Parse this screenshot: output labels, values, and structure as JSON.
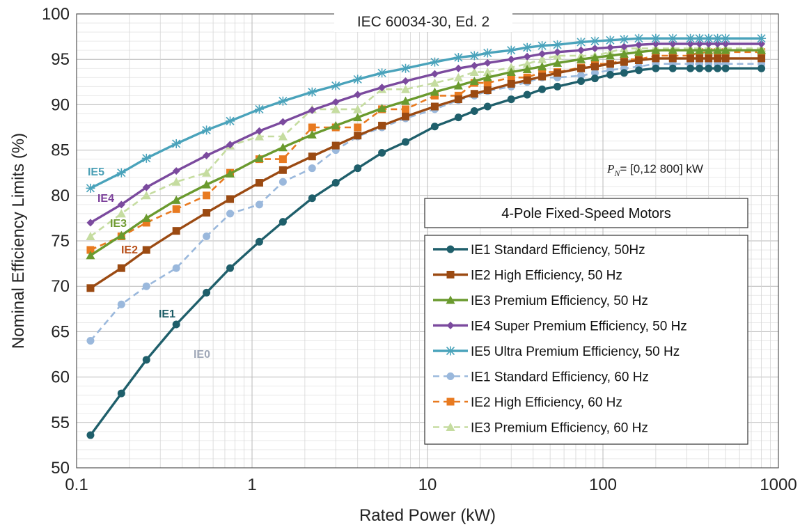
{
  "chart_data": {
    "type": "line",
    "title": "IEC 60034-30, Ed. 2",
    "xlabel": "Rated Power (kW)",
    "ylabel": "Nominal Efficiency Limits (%)",
    "xscale": "log",
    "xlim": [
      0.1,
      1000
    ],
    "ylim": [
      50,
      100
    ],
    "x_ticks": [
      "0.1",
      "1",
      "10",
      "100",
      "1000"
    ],
    "y_ticks": [
      "50",
      "55",
      "60",
      "65",
      "70",
      "75",
      "80",
      "85",
      "90",
      "95",
      "100"
    ],
    "grid": true,
    "legend_title": "4-Pole Fixed-Speed Motors",
    "legend_position": "right",
    "range_note": {
      "symbol": "P",
      "subscript": "N",
      "text": "= [0,12  800] kW"
    },
    "annotations": [
      {
        "text": "IE5",
        "color": "#4a9fb5"
      },
      {
        "text": "IE4",
        "color": "#7b3f9a"
      },
      {
        "text": "IE3",
        "color": "#6f9a30"
      },
      {
        "text": "IE2",
        "color": "#b8501a"
      },
      {
        "text": "IE1",
        "color": "#1c5c66"
      },
      {
        "text": "IE0",
        "color": "#a0a8b8"
      }
    ],
    "x": [
      0.12,
      0.18,
      0.25,
      0.37,
      0.55,
      0.75,
      1.1,
      1.5,
      2.2,
      3,
      4,
      5.5,
      7.5,
      11,
      15,
      18.5,
      22,
      30,
      37,
      45,
      55,
      75,
      90,
      110,
      132,
      160,
      200,
      250,
      315,
      355,
      400,
      450,
      500,
      800
    ],
    "series": [
      {
        "name": "IE1 Standard Efficiency, 50Hz",
        "color": "#1f5f6b",
        "marker": "circle",
        "dash": false,
        "values": [
          53.6,
          58.2,
          61.9,
          65.8,
          69.3,
          72.0,
          74.9,
          77.1,
          79.7,
          81.4,
          83.0,
          84.7,
          85.9,
          87.6,
          88.6,
          89.3,
          89.8,
          90.6,
          91.1,
          91.7,
          92.0,
          92.6,
          92.9,
          93.3,
          93.5,
          93.8,
          94.0,
          94.0,
          94.0,
          94.0,
          94.0,
          94.0,
          94.0,
          94.0
        ]
      },
      {
        "name": "IE2 High Efficiency, 50 Hz",
        "color": "#9b4a12",
        "marker": "square",
        "dash": false,
        "values": [
          69.8,
          72.0,
          74.0,
          76.1,
          78.1,
          79.6,
          81.4,
          82.8,
          84.3,
          85.5,
          86.6,
          87.7,
          88.7,
          89.8,
          90.6,
          91.2,
          91.6,
          92.3,
          92.7,
          93.1,
          93.5,
          94.0,
          94.2,
          94.5,
          94.7,
          94.9,
          95.1,
          95.1,
          95.1,
          95.1,
          95.1,
          95.1,
          95.1,
          95.1
        ]
      },
      {
        "name": "IE3 Premium Efficiency, 50 Hz",
        "color": "#6a9a2e",
        "marker": "triangle",
        "dash": false,
        "values": [
          73.4,
          75.6,
          77.5,
          79.5,
          81.2,
          82.4,
          84.1,
          85.3,
          86.7,
          87.7,
          88.6,
          89.6,
          90.4,
          91.4,
          92.1,
          92.6,
          93.0,
          93.6,
          93.9,
          94.2,
          94.6,
          95.0,
          95.2,
          95.4,
          95.6,
          95.8,
          96.0,
          96.0,
          96.0,
          96.0,
          96.0,
          96.0,
          96.0,
          96.0
        ]
      },
      {
        "name": "IE4 Super Premium Efficiency, 50 Hz",
        "color": "#7b4a9e",
        "marker": "diamond",
        "dash": false,
        "values": [
          77.0,
          79.0,
          80.9,
          82.7,
          84.4,
          85.6,
          87.1,
          88.1,
          89.4,
          90.3,
          91.1,
          91.9,
          92.6,
          93.4,
          94.0,
          94.3,
          94.6,
          95.0,
          95.3,
          95.6,
          95.8,
          96.0,
          96.2,
          96.3,
          96.4,
          96.6,
          96.7,
          96.7,
          96.7,
          96.7,
          96.7,
          96.7,
          96.7,
          96.7
        ]
      },
      {
        "name": "IE5 Ultra Premium Efficiency, 50 Hz",
        "color": "#4aa3bb",
        "marker": "star",
        "dash": false,
        "values": [
          80.8,
          82.5,
          84.1,
          85.7,
          87.2,
          88.2,
          89.5,
          90.4,
          91.4,
          92.1,
          92.8,
          93.5,
          94.0,
          94.7,
          95.2,
          95.4,
          95.7,
          96.0,
          96.3,
          96.5,
          96.6,
          96.9,
          97.0,
          97.1,
          97.2,
          97.3,
          97.3,
          97.3,
          97.3,
          97.3,
          97.3,
          97.3,
          97.3,
          97.3
        ]
      },
      {
        "name": "IE1 Standard Efficiency, 60 Hz",
        "color": "#9ab8dc",
        "marker": "circle",
        "dash": true,
        "values": [
          64.0,
          68.0,
          70.0,
          72.0,
          75.5,
          78.0,
          79.0,
          81.5,
          83.0,
          85.0,
          86.5,
          87.5,
          88.5,
          89.5,
          90.5,
          91.0,
          91.5,
          92.0,
          92.5,
          93.0,
          93.0,
          93.2,
          93.5,
          93.8,
          94.0,
          94.2,
          94.5,
          94.5,
          94.5,
          94.5,
          94.5,
          94.5,
          94.5,
          94.5
        ]
      },
      {
        "name": "IE2 High Efficiency, 60 Hz",
        "color": "#e87a20",
        "marker": "square",
        "dash": true,
        "values": [
          74.0,
          75.5,
          77.0,
          78.5,
          80.0,
          82.5,
          84.0,
          84.0,
          87.5,
          87.5,
          87.5,
          89.5,
          89.5,
          91.0,
          91.0,
          92.4,
          92.4,
          93.0,
          93.0,
          93.6,
          93.6,
          94.1,
          94.5,
          94.5,
          95.0,
          95.0,
          95.4,
          95.4,
          95.4,
          95.8,
          95.8,
          95.8,
          95.8,
          95.8
        ]
      },
      {
        "name": "IE3 Premium Efficiency, 60 Hz",
        "color": "#c5dca0",
        "marker": "triangle",
        "dash": true,
        "values": [
          75.5,
          78.0,
          80.0,
          81.5,
          82.5,
          85.5,
          86.5,
          86.5,
          89.5,
          89.5,
          89.5,
          91.7,
          91.7,
          92.4,
          93.0,
          93.6,
          93.6,
          94.1,
          94.5,
          95.0,
          95.4,
          95.4,
          95.4,
          95.8,
          96.2,
          96.2,
          96.2,
          96.2,
          96.2,
          96.2,
          96.2,
          96.2,
          96.2,
          96.2
        ]
      }
    ]
  }
}
